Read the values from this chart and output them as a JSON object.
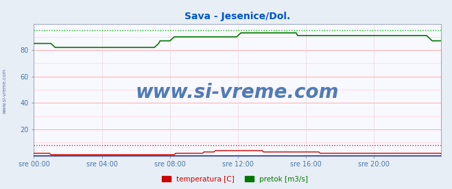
{
  "title": "Sava - Jesenice/Dol.",
  "title_color": "#0055cc",
  "bg_color": "#e8eef5",
  "plot_bg_color": "#f8f8ff",
  "grid_color_h": "#ffaaaa",
  "grid_color_v": "#ddbbbb",
  "ylabel_color": "#4477aa",
  "xlabel_color": "#4477aa",
  "watermark_color": "#3366aa",
  "watermark_text": "www.si-vreme.com",
  "side_text": "www.si-vreme.com",
  "ylim": [
    0,
    100
  ],
  "yticks": [
    20,
    40,
    60,
    80
  ],
  "xtick_labels": [
    "sre 00:00",
    "sre 04:00",
    "sre 08:00",
    "sre 12:00",
    "sre 16:00",
    "sre 20:00"
  ],
  "n_points": 288,
  "temp_color": "#cc0000",
  "flow_color": "#007700",
  "height_color": "#0000bb",
  "temp_dotted_color": "#cc2222",
  "flow_dotted_color": "#00bb00",
  "temp_max": 8.0,
  "flow_max": 95.0,
  "legend_labels": [
    "temperatura [C]",
    "pretok [m3/s]"
  ],
  "legend_colors": [
    "#cc0000",
    "#007700"
  ],
  "flow_data": [
    85,
    85,
    85,
    85,
    85,
    85,
    85,
    85,
    85,
    85,
    85,
    85,
    85,
    84,
    83,
    82,
    82,
    82,
    82,
    82,
    82,
    82,
    82,
    82,
    82,
    82,
    82,
    82,
    82,
    82,
    82,
    82,
    82,
    82,
    82,
    82,
    82,
    82,
    82,
    82,
    82,
    82,
    82,
    82,
    82,
    82,
    82,
    82,
    82,
    82,
    82,
    82,
    82,
    82,
    82,
    82,
    82,
    82,
    82,
    82,
    82,
    82,
    82,
    82,
    82,
    82,
    82,
    82,
    82,
    82,
    82,
    82,
    82,
    82,
    82,
    82,
    82,
    82,
    82,
    82,
    82,
    82,
    82,
    82,
    82,
    82,
    83,
    84,
    85,
    87,
    87,
    87,
    87,
    87,
    87,
    87,
    87,
    88,
    89,
    90,
    90,
    90,
    90,
    90,
    90,
    90,
    90,
    90,
    90,
    90,
    90,
    90,
    90,
    90,
    90,
    90,
    90,
    90,
    90,
    90,
    90,
    90,
    90,
    90,
    90,
    90,
    90,
    90,
    90,
    90,
    90,
    90,
    90,
    90,
    90,
    90,
    90,
    90,
    90,
    90,
    90,
    90,
    90,
    90,
    91,
    92,
    93,
    93,
    93,
    93,
    93,
    93,
    93,
    93,
    93,
    93,
    93,
    93,
    93,
    93,
    93,
    93,
    93,
    93,
    93,
    93,
    93,
    93,
    93,
    93,
    93,
    93,
    93,
    93,
    93,
    93,
    93,
    93,
    93,
    93,
    93,
    93,
    93,
    93,
    93,
    93,
    91,
    91,
    91,
    91,
    91,
    91,
    91,
    91,
    91,
    91,
    91,
    91,
    91,
    91,
    91,
    91,
    91,
    91,
    91,
    91,
    91,
    91,
    91,
    91,
    91,
    91,
    91,
    91,
    91,
    91,
    91,
    91,
    91,
    91,
    91,
    91,
    91,
    91,
    91,
    91,
    91,
    91,
    91,
    91,
    91,
    91,
    91,
    91,
    91,
    91,
    91,
    91,
    91,
    91,
    91,
    91,
    91,
    91,
    91,
    91,
    91,
    91,
    91,
    91,
    91,
    91,
    91,
    91,
    91,
    91,
    91,
    91,
    91,
    91,
    91,
    91,
    91,
    91,
    91,
    91,
    91,
    91,
    91,
    91,
    91,
    91,
    91,
    91,
    91,
    91,
    91,
    91,
    90,
    89,
    88,
    87,
    87,
    87,
    87,
    87
  ],
  "temp_data": [
    2,
    2,
    2,
    2,
    2,
    2,
    2,
    2,
    2,
    2,
    2,
    2,
    1,
    1,
    1,
    1,
    1,
    1,
    1,
    1,
    1,
    1,
    1,
    1,
    1,
    1,
    1,
    1,
    1,
    1,
    1,
    1,
    1,
    1,
    1,
    1,
    1,
    1,
    1,
    1,
    1,
    1,
    1,
    1,
    1,
    1,
    1,
    1,
    1,
    1,
    1,
    1,
    1,
    1,
    1,
    1,
    1,
    1,
    1,
    1,
    1,
    1,
    1,
    1,
    1,
    1,
    1,
    1,
    1,
    1,
    1,
    1,
    1,
    1,
    1,
    1,
    1,
    1,
    1,
    1,
    1,
    1,
    1,
    1,
    1,
    1,
    1,
    1,
    1,
    1,
    1,
    1,
    1,
    1,
    1,
    1,
    1,
    1,
    1,
    1,
    2,
    2,
    2,
    2,
    2,
    2,
    2,
    2,
    2,
    2,
    2,
    2,
    2,
    2,
    2,
    2,
    2,
    2,
    2,
    2,
    3,
    3,
    3,
    3,
    3,
    3,
    3,
    3,
    4,
    4,
    4,
    4,
    4,
    4,
    4,
    4,
    4,
    4,
    4,
    4,
    4,
    4,
    4,
    4,
    4,
    4,
    4,
    4,
    4,
    4,
    4,
    4,
    4,
    4,
    4,
    4,
    4,
    4,
    4,
    4,
    4,
    4,
    3,
    3,
    3,
    3,
    3,
    3,
    3,
    3,
    3,
    3,
    3,
    3,
    3,
    3,
    3,
    3,
    3,
    3,
    3,
    3,
    3,
    3,
    3,
    3,
    3,
    3,
    3,
    3,
    3,
    3,
    3,
    3,
    3,
    3,
    3,
    3,
    3,
    3,
    3,
    3,
    2,
    2,
    2,
    2,
    2,
    2,
    2,
    2,
    2,
    2,
    2,
    2,
    2,
    2,
    2,
    2,
    2,
    2,
    2,
    2,
    2,
    2,
    2,
    2,
    2,
    2,
    2,
    2,
    2,
    2,
    2,
    2,
    2,
    2,
    2,
    2,
    2,
    2,
    2,
    2,
    2,
    2,
    2,
    2,
    2,
    2,
    2,
    2,
    2,
    2,
    2,
    2,
    2,
    2,
    2,
    2,
    2,
    2,
    2,
    2,
    2,
    2,
    2,
    2,
    2,
    2,
    2,
    2,
    2,
    2,
    2,
    2,
    2,
    2,
    2,
    2,
    2,
    2,
    2,
    2,
    2,
    2,
    2,
    2,
    2,
    2,
    2,
    2
  ]
}
